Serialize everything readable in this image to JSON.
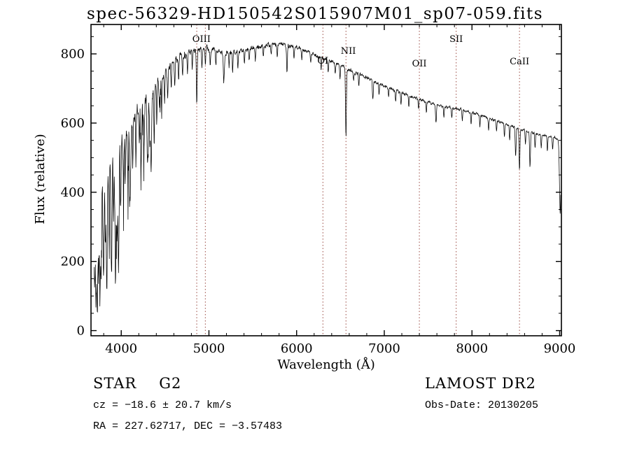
{
  "chart_data": {
    "type": "line",
    "title": "spec-56329-HD150542S015907M01_sp07-059.fits",
    "xlabel": "Wavelength (Å)",
    "ylabel": "Flux (relative)",
    "xlim": [
      3655,
      9020
    ],
    "ylim": [
      -15,
      885
    ],
    "xticks": [
      4000,
      5000,
      6000,
      7000,
      8000,
      9000
    ],
    "yticks": [
      0,
      200,
      400,
      600,
      800
    ],
    "x_minor_step": 200,
    "y_minor_step": 50,
    "grid": false,
    "legend": false,
    "colors": {
      "spectrum": "#000000",
      "marker_line": "#9a4a42",
      "axes": "#000000",
      "background": "#ffffff"
    },
    "line_markers": [
      {
        "wavelength": 4861,
        "label": ""
      },
      {
        "wavelength": 4959,
        "label": "OIII",
        "label_w": 4915,
        "label_y": 60
      },
      {
        "wavelength": 6300,
        "label": "OI",
        "label_y": 91
      },
      {
        "wavelength": 6563,
        "label": "NII",
        "label_w": 6590,
        "label_y": 77
      },
      {
        "wavelength": 7400,
        "label": "OII",
        "label_y": 95
      },
      {
        "wavelength": 7820,
        "label": "SII",
        "label_y": 60
      },
      {
        "wavelength": 8542,
        "label": "CaII",
        "label_y": 92
      }
    ],
    "spectrum": {
      "x": [
        3650,
        3750,
        3850,
        3950,
        4050,
        4150,
        4250,
        4350,
        4450,
        4550,
        4650,
        4750,
        4850,
        4950,
        5050,
        5150,
        5250,
        5350,
        5450,
        5550,
        5650,
        5750,
        5850,
        5950,
        6050,
        6150,
        6250,
        6350,
        6450,
        6550,
        6650,
        6750,
        6850,
        6950,
        7050,
        7150,
        7250,
        7350,
        7450,
        7550,
        7650,
        7750,
        7850,
        7950,
        8050,
        8150,
        8250,
        8350,
        8450,
        8550,
        8650,
        8750,
        8850,
        8950,
        9010
      ],
      "flux": [
        280,
        420,
        490,
        535,
        580,
        620,
        655,
        688,
        725,
        762,
        790,
        806,
        815,
        816,
        810,
        805,
        804,
        810,
        816,
        821,
        825,
        827,
        828,
        823,
        815,
        805,
        793,
        782,
        772,
        760,
        748,
        738,
        726,
        714,
        703,
        692,
        683,
        673,
        664,
        657,
        650,
        645,
        640,
        634,
        627,
        618,
        610,
        601,
        592,
        583,
        575,
        568,
        562,
        557,
        552
      ],
      "noise": [
        150,
        145,
        125,
        110,
        95,
        85,
        75,
        62,
        50,
        40,
        33,
        28,
        25,
        23,
        22,
        21,
        20,
        20,
        19,
        19,
        18,
        18,
        18,
        17,
        16,
        15,
        15,
        14,
        14,
        13,
        13,
        13,
        12,
        12,
        12,
        12,
        11,
        11,
        11,
        11,
        11,
        11,
        11,
        10,
        10,
        10,
        10,
        10,
        10,
        10,
        10,
        10,
        10,
        10,
        10
      ]
    },
    "absorption_features": [
      [
        3697,
        220,
        6
      ],
      [
        3712,
        260,
        5
      ],
      [
        3726,
        300,
        5
      ],
      [
        3740,
        240,
        5
      ],
      [
        3756,
        280,
        5
      ],
      [
        3770,
        320,
        6
      ],
      [
        3798,
        300,
        6
      ],
      [
        3820,
        220,
        5
      ],
      [
        3835,
        330,
        6
      ],
      [
        3860,
        240,
        5
      ],
      [
        3889,
        340,
        6
      ],
      [
        3912,
        200,
        5
      ],
      [
        3934,
        390,
        7
      ],
      [
        3952,
        220,
        5
      ],
      [
        3969,
        360,
        7
      ],
      [
        3995,
        180,
        5
      ],
      [
        4026,
        150,
        5
      ],
      [
        4045,
        130,
        4
      ],
      [
        4077,
        170,
        5
      ],
      [
        4102,
        260,
        6
      ],
      [
        4132,
        140,
        4
      ],
      [
        4167,
        130,
        4
      ],
      [
        4206,
        120,
        4
      ],
      [
        4227,
        190,
        5
      ],
      [
        4260,
        130,
        4
      ],
      [
        4300,
        190,
        6
      ],
      [
        4326,
        150,
        4
      ],
      [
        4340,
        240,
        6
      ],
      [
        4376,
        150,
        4
      ],
      [
        4405,
        120,
        4
      ],
      [
        4435,
        90,
        4
      ],
      [
        4460,
        80,
        4
      ],
      [
        4494,
        90,
        4
      ],
      [
        4530,
        85,
        4
      ],
      [
        4570,
        75,
        4
      ],
      [
        4610,
        65,
        4
      ],
      [
        4655,
        70,
        4
      ],
      [
        4700,
        55,
        4
      ],
      [
        4755,
        60,
        4
      ],
      [
        4810,
        55,
        4
      ],
      [
        4861,
        160,
        5
      ],
      [
        4920,
        55,
        4
      ],
      [
        4960,
        50,
        4
      ],
      [
        5015,
        45,
        4
      ],
      [
        5080,
        45,
        4
      ],
      [
        5170,
        85,
        6
      ],
      [
        5230,
        45,
        4
      ],
      [
        5270,
        55,
        4
      ],
      [
        5330,
        45,
        4
      ],
      [
        5405,
        40,
        4
      ],
      [
        5460,
        35,
        4
      ],
      [
        5530,
        40,
        4
      ],
      [
        5620,
        35,
        4
      ],
      [
        5710,
        30,
        4
      ],
      [
        5780,
        35,
        4
      ],
      [
        5890,
        75,
        5
      ],
      [
        5970,
        30,
        4
      ],
      [
        6060,
        30,
        4
      ],
      [
        6160,
        30,
        4
      ],
      [
        6280,
        35,
        4
      ],
      [
        6360,
        30,
        4
      ],
      [
        6440,
        30,
        4
      ],
      [
        6495,
        40,
        4
      ],
      [
        6563,
        200,
        5
      ],
      [
        6650,
        30,
        4
      ],
      [
        6710,
        35,
        4
      ],
      [
        6870,
        55,
        5
      ],
      [
        6940,
        30,
        4
      ],
      [
        7050,
        30,
        4
      ],
      [
        7130,
        30,
        4
      ],
      [
        7190,
        35,
        4
      ],
      [
        7280,
        30,
        4
      ],
      [
        7390,
        30,
        4
      ],
      [
        7480,
        30,
        4
      ],
      [
        7590,
        55,
        5
      ],
      [
        7680,
        35,
        4
      ],
      [
        7770,
        30,
        4
      ],
      [
        7890,
        30,
        4
      ],
      [
        7990,
        35,
        4
      ],
      [
        8090,
        35,
        4
      ],
      [
        8190,
        35,
        4
      ],
      [
        8280,
        35,
        4
      ],
      [
        8370,
        40,
        4
      ],
      [
        8430,
        45,
        4
      ],
      [
        8498,
        85,
        5
      ],
      [
        8542,
        120,
        5
      ],
      [
        8610,
        40,
        4
      ],
      [
        8662,
        105,
        5
      ],
      [
        8720,
        45,
        4
      ],
      [
        8790,
        40,
        4
      ],
      [
        8860,
        40,
        4
      ],
      [
        8920,
        35,
        4
      ],
      [
        9006,
        210,
        8
      ]
    ]
  },
  "annotations": {
    "object_class": "STAR",
    "subclass": "G2",
    "survey": "LAMOST DR2",
    "cz": "cz = −18.6 ± 20.7 km/s",
    "obs_date": "Obs-Date: 20130205",
    "ra_dec": "RA = 227.62717, DEC =  −3.57483"
  }
}
